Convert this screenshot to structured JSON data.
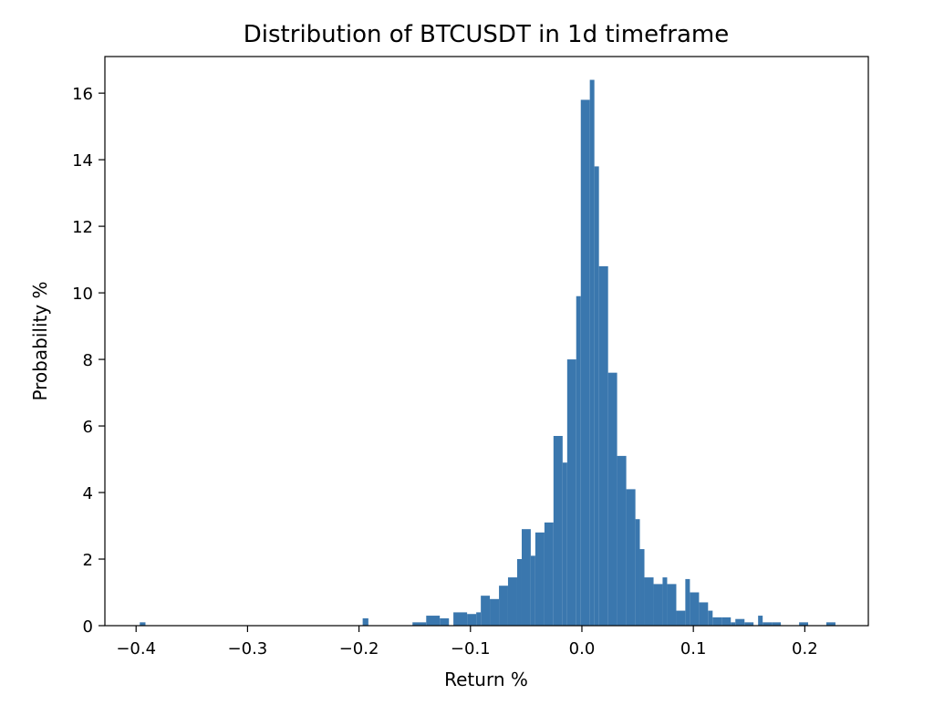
{
  "chart_data": {
    "type": "bar",
    "title": "Distribution of BTCUSDT in 1d timeframe",
    "xlabel": "Return %",
    "ylabel": "Probability %",
    "xlim": [
      -0.428,
      0.257
    ],
    "ylim": [
      0,
      17.1
    ],
    "xticks": [
      -0.4,
      -0.3,
      -0.2,
      -0.1,
      0.0,
      0.1,
      0.2
    ],
    "xtick_labels": [
      "−0.4",
      "−0.3",
      "−0.2",
      "−0.1",
      "0.0",
      "0.1",
      "0.2"
    ],
    "yticks": [
      0,
      2,
      4,
      6,
      8,
      10,
      12,
      14,
      16
    ],
    "ytick_labels": [
      "0",
      "2",
      "4",
      "6",
      "8",
      "10",
      "12",
      "14",
      "16"
    ],
    "bar_color": "#3a77ae",
    "bins": [
      {
        "x0": -0.3967,
        "x1": -0.3916,
        "y": 0.1
      },
      {
        "x0": -0.1967,
        "x1": -0.1916,
        "y": 0.22
      },
      {
        "x0": -0.152,
        "x1": -0.1397,
        "y": 0.1
      },
      {
        "x0": -0.1397,
        "x1": -0.1275,
        "y": 0.3
      },
      {
        "x0": -0.1275,
        "x1": -0.1193,
        "y": 0.22
      },
      {
        "x0": -0.1153,
        "x1": -0.103,
        "y": 0.4
      },
      {
        "x0": -0.103,
        "x1": -0.0948,
        "y": 0.35
      },
      {
        "x0": -0.0948,
        "x1": -0.0907,
        "y": 0.4
      },
      {
        "x0": -0.0907,
        "x1": -0.0826,
        "y": 0.9
      },
      {
        "x0": -0.0826,
        "x1": -0.0744,
        "y": 0.8
      },
      {
        "x0": -0.0744,
        "x1": -0.0663,
        "y": 1.2
      },
      {
        "x0": -0.0663,
        "x1": -0.0581,
        "y": 1.45
      },
      {
        "x0": -0.0581,
        "x1": -0.054,
        "y": 2.0
      },
      {
        "x0": -0.054,
        "x1": -0.0459,
        "y": 2.9
      },
      {
        "x0": -0.0459,
        "x1": -0.0418,
        "y": 2.1
      },
      {
        "x0": -0.0418,
        "x1": -0.0336,
        "y": 2.8
      },
      {
        "x0": -0.0336,
        "x1": -0.0255,
        "y": 3.1
      },
      {
        "x0": -0.0255,
        "x1": -0.0173,
        "y": 5.7
      },
      {
        "x0": -0.0173,
        "x1": -0.0132,
        "y": 4.9
      },
      {
        "x0": -0.0132,
        "x1": -0.0051,
        "y": 8.0
      },
      {
        "x0": -0.0051,
        "x1": -0.001,
        "y": 9.9
      },
      {
        "x0": -0.001,
        "x1": 0.0071,
        "y": 15.8
      },
      {
        "x0": 0.0071,
        "x1": 0.0112,
        "y": 16.4
      },
      {
        "x0": 0.0112,
        "x1": 0.0153,
        "y": 13.8
      },
      {
        "x0": 0.0153,
        "x1": 0.0235,
        "y": 10.8
      },
      {
        "x0": 0.0235,
        "x1": 0.0316,
        "y": 7.6
      },
      {
        "x0": 0.0316,
        "x1": 0.0398,
        "y": 5.1
      },
      {
        "x0": 0.0398,
        "x1": 0.048,
        "y": 4.1
      },
      {
        "x0": 0.048,
        "x1": 0.052,
        "y": 3.2
      },
      {
        "x0": 0.052,
        "x1": 0.0561,
        "y": 2.3
      },
      {
        "x0": 0.0561,
        "x1": 0.0643,
        "y": 1.45
      },
      {
        "x0": 0.0643,
        "x1": 0.0724,
        "y": 1.25
      },
      {
        "x0": 0.0724,
        "x1": 0.0765,
        "y": 1.45
      },
      {
        "x0": 0.0765,
        "x1": 0.0847,
        "y": 1.25
      },
      {
        "x0": 0.0847,
        "x1": 0.0928,
        "y": 0.45
      },
      {
        "x0": 0.0928,
        "x1": 0.0969,
        "y": 1.4
      },
      {
        "x0": 0.0969,
        "x1": 0.1051,
        "y": 1.0
      },
      {
        "x0": 0.1051,
        "x1": 0.1132,
        "y": 0.7
      },
      {
        "x0": 0.1132,
        "x1": 0.1173,
        "y": 0.45
      },
      {
        "x0": 0.1173,
        "x1": 0.1255,
        "y": 0.25
      },
      {
        "x0": 0.1255,
        "x1": 0.1336,
        "y": 0.25
      },
      {
        "x0": 0.1336,
        "x1": 0.1377,
        "y": 0.1
      },
      {
        "x0": 0.1377,
        "x1": 0.1459,
        "y": 0.2
      },
      {
        "x0": 0.1459,
        "x1": 0.154,
        "y": 0.1
      },
      {
        "x0": 0.1581,
        "x1": 0.1622,
        "y": 0.3
      },
      {
        "x0": 0.1622,
        "x1": 0.1704,
        "y": 0.1
      },
      {
        "x0": 0.1704,
        "x1": 0.1785,
        "y": 0.1
      },
      {
        "x0": 0.1949,
        "x1": 0.203,
        "y": 0.1
      },
      {
        "x0": 0.2193,
        "x1": 0.2275,
        "y": 0.1
      }
    ]
  }
}
